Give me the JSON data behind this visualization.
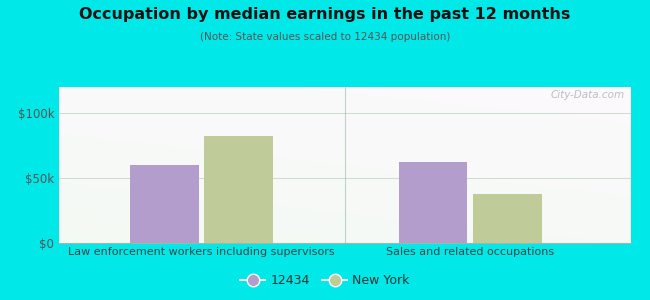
{
  "title": "Occupation by median earnings in the past 12 months",
  "subtitle": "(Note: State values scaled to 12434 population)",
  "categories": [
    "Law enforcement workers including supervisors",
    "Sales and related occupations"
  ],
  "values_12434": [
    60000,
    62000
  ],
  "values_ny": [
    82000,
    38000
  ],
  "color_12434": "#b39dcc",
  "color_ny": "#bfcc99",
  "ylim": [
    0,
    120000
  ],
  "yticks": [
    0,
    50000,
    100000
  ],
  "ytick_labels": [
    "$0",
    "$50k",
    "$100k"
  ],
  "bg_outer": "#00e8e8",
  "bg_inner_top": "#f0f8ee",
  "bg_inner_bottom": "#d0eedc",
  "legend_labels": [
    "12434",
    "New York"
  ],
  "bar_width": 0.12,
  "watermark": "City-Data.com"
}
